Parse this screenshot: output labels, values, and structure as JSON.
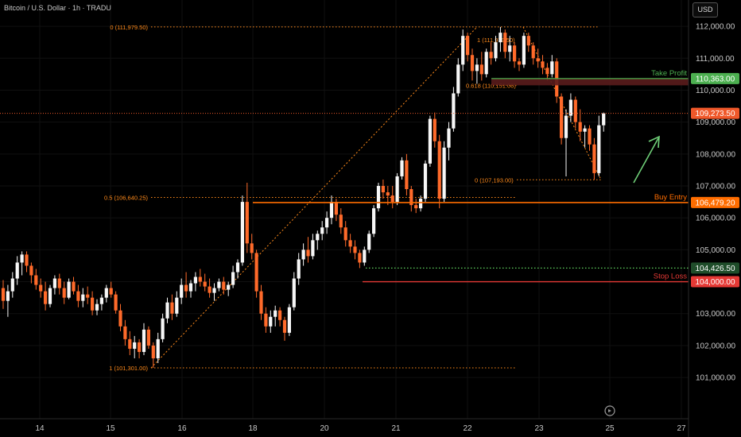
{
  "header": {
    "symbol_label": "Bitcoin / U.S. Dollar · 1h · TRADU",
    "currency_badge": "USD"
  },
  "chart_data": {
    "type": "candlestick",
    "title": "Bitcoin / U.S. Dollar · 1h · TRADU",
    "x_ticks": [
      "14",
      "15",
      "16",
      "18",
      "20",
      "21",
      "22",
      "23",
      "25",
      "27"
    ],
    "y_ticks": [
      "101,000.00",
      "102,000.00",
      "103,000.00",
      "104,000.00",
      "105,000.00",
      "106,000.00",
      "107,000.00",
      "108,000.00",
      "109,000.00",
      "110,000.00",
      "111,000.00",
      "112,000.00"
    ],
    "ylim": [
      100500,
      112600
    ],
    "colors": {
      "up": "#f7f7f7",
      "down": "#ff6a2a",
      "fib": "#ff8a1a",
      "take_profit": "#4caf50",
      "stop_loss": "#e53935",
      "buy_entry": "#ff6d00",
      "current_price": "#f0582a",
      "grid": "#101010"
    },
    "fib_levels": [
      {
        "label": "0 (111,979.50)",
        "price": 111979.5
      },
      {
        "label": "0.5 (106,640.25)",
        "price": 106640.25
      },
      {
        "label": "1 (101,301.00)",
        "price": 101301.0
      },
      {
        "label": "1 (111,979.50)",
        "price": 111979.5
      },
      {
        "label": "0.618 (110,151.06)",
        "price": 110151.06
      },
      {
        "label": "0 (107,193.00)",
        "price": 107193.0
      }
    ],
    "trade_levels": [
      {
        "name": "Take Profit",
        "price_label": "110,363.00",
        "price": 110363.0
      },
      {
        "name": "Buy Entry",
        "price_label": "106,479.20",
        "price": 106479.2
      },
      {
        "name": "Stop Loss",
        "price_label": "104,000.00",
        "price": 104000.0
      }
    ],
    "current_price": {
      "label": "109,273.50",
      "price": 109273.5
    },
    "support_price": {
      "label": "104,426.50",
      "price": 104426.5
    },
    "candles": [
      {
        "o": 103800,
        "h": 104050,
        "l": 103150,
        "c": 103400
      },
      {
        "o": 103400,
        "h": 103900,
        "l": 102900,
        "c": 103700
      },
      {
        "o": 103700,
        "h": 104300,
        "l": 103500,
        "c": 104100
      },
      {
        "o": 104100,
        "h": 104800,
        "l": 103900,
        "c": 104600
      },
      {
        "o": 104600,
        "h": 104950,
        "l": 104200,
        "c": 104850
      },
      {
        "o": 104850,
        "h": 104950,
        "l": 104300,
        "c": 104500
      },
      {
        "o": 104500,
        "h": 104600,
        "l": 103950,
        "c": 104200
      },
      {
        "o": 104200,
        "h": 104400,
        "l": 103750,
        "c": 103900
      },
      {
        "o": 103900,
        "h": 104100,
        "l": 103500,
        "c": 103700
      },
      {
        "o": 103700,
        "h": 104000,
        "l": 103100,
        "c": 103300
      },
      {
        "o": 103300,
        "h": 103900,
        "l": 103200,
        "c": 103800
      },
      {
        "o": 103800,
        "h": 104200,
        "l": 103600,
        "c": 104100
      },
      {
        "o": 104100,
        "h": 104250,
        "l": 103600,
        "c": 103800
      },
      {
        "o": 103800,
        "h": 104000,
        "l": 103300,
        "c": 103500
      },
      {
        "o": 103500,
        "h": 104100,
        "l": 103450,
        "c": 104000
      },
      {
        "o": 104000,
        "h": 104150,
        "l": 103600,
        "c": 103700
      },
      {
        "o": 103700,
        "h": 103900,
        "l": 103200,
        "c": 103400
      },
      {
        "o": 103400,
        "h": 103800,
        "l": 103200,
        "c": 103600
      },
      {
        "o": 103600,
        "h": 103850,
        "l": 103300,
        "c": 103500
      },
      {
        "o": 103500,
        "h": 103700,
        "l": 102950,
        "c": 103100
      },
      {
        "o": 103100,
        "h": 103450,
        "l": 102950,
        "c": 103300
      },
      {
        "o": 103300,
        "h": 103600,
        "l": 103100,
        "c": 103500
      },
      {
        "o": 103500,
        "h": 103900,
        "l": 103350,
        "c": 103800
      },
      {
        "o": 103800,
        "h": 104000,
        "l": 103500,
        "c": 103600
      },
      {
        "o": 103600,
        "h": 103700,
        "l": 103000,
        "c": 103100
      },
      {
        "o": 103100,
        "h": 103300,
        "l": 102450,
        "c": 102600
      },
      {
        "o": 102600,
        "h": 102800,
        "l": 102000,
        "c": 102200
      },
      {
        "o": 102200,
        "h": 102450,
        "l": 101700,
        "c": 101900
      },
      {
        "o": 101900,
        "h": 102300,
        "l": 101600,
        "c": 102100
      },
      {
        "o": 102100,
        "h": 102200,
        "l": 101600,
        "c": 101800
      },
      {
        "o": 101800,
        "h": 102700,
        "l": 101700,
        "c": 102500
      },
      {
        "o": 102500,
        "h": 102600,
        "l": 101900,
        "c": 102000
      },
      {
        "o": 102000,
        "h": 102100,
        "l": 101301,
        "c": 101600
      },
      {
        "o": 101600,
        "h": 102400,
        "l": 101450,
        "c": 102200
      },
      {
        "o": 102200,
        "h": 103000,
        "l": 102100,
        "c": 102850
      },
      {
        "o": 102850,
        "h": 103500,
        "l": 102700,
        "c": 103350
      },
      {
        "o": 103350,
        "h": 103600,
        "l": 102800,
        "c": 103000
      },
      {
        "o": 103000,
        "h": 103700,
        "l": 102900,
        "c": 103500
      },
      {
        "o": 103500,
        "h": 104100,
        "l": 103300,
        "c": 103900
      },
      {
        "o": 103900,
        "h": 104300,
        "l": 103500,
        "c": 103700
      },
      {
        "o": 103700,
        "h": 104050,
        "l": 103500,
        "c": 103950
      },
      {
        "o": 103950,
        "h": 104300,
        "l": 103700,
        "c": 104150
      },
      {
        "o": 104150,
        "h": 104400,
        "l": 103850,
        "c": 104000
      },
      {
        "o": 104000,
        "h": 104250,
        "l": 103700,
        "c": 103850
      },
      {
        "o": 103850,
        "h": 104100,
        "l": 103500,
        "c": 103650
      },
      {
        "o": 103650,
        "h": 103950,
        "l": 103400,
        "c": 103800
      },
      {
        "o": 103800,
        "h": 104100,
        "l": 103700,
        "c": 104000
      },
      {
        "o": 104000,
        "h": 104150,
        "l": 103600,
        "c": 103750
      },
      {
        "o": 103750,
        "h": 104000,
        "l": 103550,
        "c": 103900
      },
      {
        "o": 103900,
        "h": 104500,
        "l": 103800,
        "c": 104300
      },
      {
        "o": 104300,
        "h": 104700,
        "l": 104100,
        "c": 104600
      },
      {
        "o": 104600,
        "h": 106700,
        "l": 104500,
        "c": 106500
      },
      {
        "o": 106500,
        "h": 107100,
        "l": 104900,
        "c": 105200
      },
      {
        "o": 105200,
        "h": 105500,
        "l": 104700,
        "c": 104900
      },
      {
        "o": 104900,
        "h": 105000,
        "l": 103500,
        "c": 103700
      },
      {
        "o": 103700,
        "h": 103900,
        "l": 102800,
        "c": 103000
      },
      {
        "o": 103000,
        "h": 103200,
        "l": 102400,
        "c": 102600
      },
      {
        "o": 102600,
        "h": 103100,
        "l": 102400,
        "c": 102900
      },
      {
        "o": 102900,
        "h": 103250,
        "l": 102600,
        "c": 103100
      },
      {
        "o": 103100,
        "h": 103200,
        "l": 102600,
        "c": 102800
      },
      {
        "o": 102800,
        "h": 102900,
        "l": 102150,
        "c": 102400
      },
      {
        "o": 102400,
        "h": 103300,
        "l": 102300,
        "c": 103200
      },
      {
        "o": 103200,
        "h": 104300,
        "l": 103100,
        "c": 104100
      },
      {
        "o": 104100,
        "h": 104900,
        "l": 103900,
        "c": 104700
      },
      {
        "o": 104700,
        "h": 105200,
        "l": 104500,
        "c": 105000
      },
      {
        "o": 105000,
        "h": 105400,
        "l": 104600,
        "c": 104800
      },
      {
        "o": 104800,
        "h": 105500,
        "l": 104700,
        "c": 105300
      },
      {
        "o": 105300,
        "h": 105600,
        "l": 105000,
        "c": 105500
      },
      {
        "o": 105500,
        "h": 105900,
        "l": 105300,
        "c": 105700
      },
      {
        "o": 105700,
        "h": 106200,
        "l": 105500,
        "c": 106000
      },
      {
        "o": 106000,
        "h": 106700,
        "l": 105800,
        "c": 106500
      },
      {
        "o": 106500,
        "h": 106600,
        "l": 105900,
        "c": 106100
      },
      {
        "o": 106100,
        "h": 106300,
        "l": 105500,
        "c": 105700
      },
      {
        "o": 105700,
        "h": 105900,
        "l": 105100,
        "c": 105300
      },
      {
        "o": 105300,
        "h": 105500,
        "l": 104900,
        "c": 105100
      },
      {
        "o": 105100,
        "h": 105300,
        "l": 104700,
        "c": 104900
      },
      {
        "o": 104900,
        "h": 105000,
        "l": 104426.5,
        "c": 104600
      },
      {
        "o": 104600,
        "h": 105100,
        "l": 104500,
        "c": 105000
      },
      {
        "o": 105000,
        "h": 105600,
        "l": 104900,
        "c": 105500
      },
      {
        "o": 105500,
        "h": 106400,
        "l": 105400,
        "c": 106300
      },
      {
        "o": 106300,
        "h": 107100,
        "l": 106200,
        "c": 107000
      },
      {
        "o": 107000,
        "h": 107200,
        "l": 106600,
        "c": 106800
      },
      {
        "o": 106800,
        "h": 107000,
        "l": 106400,
        "c": 106700
      },
      {
        "o": 106700,
        "h": 107000,
        "l": 106300,
        "c": 106500
      },
      {
        "o": 106500,
        "h": 107400,
        "l": 106400,
        "c": 107300
      },
      {
        "o": 107300,
        "h": 107900,
        "l": 107200,
        "c": 107800
      },
      {
        "o": 107800,
        "h": 108000,
        "l": 106700,
        "c": 106900
      },
      {
        "o": 106900,
        "h": 107000,
        "l": 106200,
        "c": 106400
      },
      {
        "o": 106400,
        "h": 106600,
        "l": 106150,
        "c": 106300
      },
      {
        "o": 106300,
        "h": 106700,
        "l": 106200,
        "c": 106600
      },
      {
        "o": 106600,
        "h": 107800,
        "l": 106500,
        "c": 107700
      },
      {
        "o": 107700,
        "h": 109200,
        "l": 107600,
        "c": 109100
      },
      {
        "o": 109100,
        "h": 109300,
        "l": 108200,
        "c": 108400
      },
      {
        "o": 108400,
        "h": 108600,
        "l": 106300,
        "c": 106600
      },
      {
        "o": 106600,
        "h": 108400,
        "l": 106500,
        "c": 108200
      },
      {
        "o": 108200,
        "h": 109000,
        "l": 107800,
        "c": 108800
      },
      {
        "o": 108800,
        "h": 110100,
        "l": 108700,
        "c": 109900
      },
      {
        "o": 109900,
        "h": 111000,
        "l": 109800,
        "c": 110800
      },
      {
        "o": 110800,
        "h": 111900,
        "l": 110600,
        "c": 111700
      },
      {
        "o": 111700,
        "h": 111800,
        "l": 110900,
        "c": 111100
      },
      {
        "o": 111100,
        "h": 111300,
        "l": 110300,
        "c": 110600
      },
      {
        "o": 110600,
        "h": 111000,
        "l": 110200,
        "c": 110800
      },
      {
        "o": 110800,
        "h": 111200,
        "l": 110300,
        "c": 110500
      },
      {
        "o": 110500,
        "h": 111300,
        "l": 110400,
        "c": 111200
      },
      {
        "o": 111200,
        "h": 111500,
        "l": 110800,
        "c": 111000
      },
      {
        "o": 111000,
        "h": 111700,
        "l": 110900,
        "c": 111500
      },
      {
        "o": 111500,
        "h": 111979.5,
        "l": 111200,
        "c": 111800
      },
      {
        "o": 111800,
        "h": 111900,
        "l": 111000,
        "c": 111200
      },
      {
        "o": 111200,
        "h": 111700,
        "l": 110900,
        "c": 111400
      },
      {
        "o": 111400,
        "h": 111500,
        "l": 110700,
        "c": 110900
      },
      {
        "o": 110900,
        "h": 111000,
        "l": 110600,
        "c": 110800
      },
      {
        "o": 110800,
        "h": 111800,
        "l": 110700,
        "c": 111700
      },
      {
        "o": 111700,
        "h": 111800,
        "l": 111200,
        "c": 111400
      },
      {
        "o": 111400,
        "h": 111500,
        "l": 110800,
        "c": 111000
      },
      {
        "o": 111000,
        "h": 111300,
        "l": 110700,
        "c": 110900
      },
      {
        "o": 110900,
        "h": 111100,
        "l": 110500,
        "c": 110700
      },
      {
        "o": 110700,
        "h": 110850,
        "l": 110300,
        "c": 110500
      },
      {
        "o": 110500,
        "h": 111100,
        "l": 110400,
        "c": 110900
      },
      {
        "o": 110900,
        "h": 111000,
        "l": 109600,
        "c": 109800
      },
      {
        "o": 109800,
        "h": 109900,
        "l": 108300,
        "c": 108500
      },
      {
        "o": 108500,
        "h": 109400,
        "l": 107300,
        "c": 109200
      },
      {
        "o": 109200,
        "h": 109900,
        "l": 109000,
        "c": 109700
      },
      {
        "o": 109700,
        "h": 109800,
        "l": 108800,
        "c": 109000
      },
      {
        "o": 109000,
        "h": 109400,
        "l": 108400,
        "c": 108700
      },
      {
        "o": 108700,
        "h": 108900,
        "l": 108200,
        "c": 108800
      },
      {
        "o": 108800,
        "h": 108900,
        "l": 108100,
        "c": 108300
      },
      {
        "o": 108300,
        "h": 108500,
        "l": 107193,
        "c": 107400
      },
      {
        "o": 107400,
        "h": 109200,
        "l": 107300,
        "c": 108900
      },
      {
        "o": 108900,
        "h": 109300,
        "l": 108700,
        "c": 109273.5
      }
    ]
  }
}
